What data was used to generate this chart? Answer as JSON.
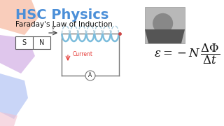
{
  "title": "HSC Physics",
  "subtitle": "Faraday's Law of Induction",
  "title_color": "#4B8FD8",
  "subtitle_color": "#111111",
  "bg_color": "#ffffff",
  "magnet_s": "S",
  "magnet_n": "N",
  "current_label": "Current",
  "current_color": "#e53935",
  "ammeter_label": "A",
  "velocity_label": "v",
  "coil_color": "#7bbcdc",
  "coil_back_color": "#aaccdd",
  "wire_color": "#777777",
  "photo_color": "#aaaaaa",
  "blob_colors": [
    "#f5c5b5",
    "#e8b8d5",
    "#b8c8f0",
    "#f0b8c8"
  ],
  "figw": 3.2,
  "figh": 1.8,
  "dpi": 100
}
